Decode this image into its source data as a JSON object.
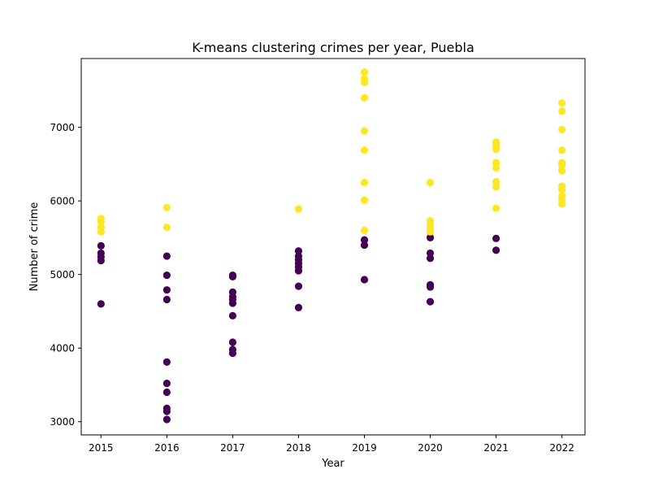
{
  "chart_data": {
    "type": "scatter",
    "title": "K-means clustering crimes per year, Puebla",
    "xlabel": "Year",
    "ylabel": "Number of crime",
    "xlim": [
      2014.7,
      2022.35
    ],
    "ylim": [
      2820,
      7935
    ],
    "x_ticks": [
      2015,
      2016,
      2017,
      2018,
      2019,
      2020,
      2021,
      2022
    ],
    "y_ticks": [
      3000,
      4000,
      5000,
      6000,
      7000
    ],
    "grid": false,
    "legend": "none",
    "colors": {
      "cluster_0": "#440154",
      "cluster_1": "#fde725"
    },
    "series": [
      {
        "cluster": 0,
        "color": "#440154",
        "points": [
          [
            2015,
            5390
          ],
          [
            2015,
            5290
          ],
          [
            2015,
            5240
          ],
          [
            2015,
            5190
          ],
          [
            2015,
            4600
          ],
          [
            2016,
            5250
          ],
          [
            2016,
            4990
          ],
          [
            2016,
            4790
          ],
          [
            2016,
            4660
          ],
          [
            2016,
            3810
          ],
          [
            2016,
            3520
          ],
          [
            2016,
            3400
          ],
          [
            2016,
            3180
          ],
          [
            2016,
            3140
          ],
          [
            2016,
            3030
          ],
          [
            2017,
            4990
          ],
          [
            2017,
            4970
          ],
          [
            2017,
            4760
          ],
          [
            2017,
            4700
          ],
          [
            2017,
            4660
          ],
          [
            2017,
            4610
          ],
          [
            2017,
            4440
          ],
          [
            2017,
            4080
          ],
          [
            2017,
            3980
          ],
          [
            2017,
            3930
          ],
          [
            2018,
            5320
          ],
          [
            2018,
            5250
          ],
          [
            2018,
            5200
          ],
          [
            2018,
            5150
          ],
          [
            2018,
            5100
          ],
          [
            2018,
            5050
          ],
          [
            2018,
            4840
          ],
          [
            2018,
            4550
          ],
          [
            2019,
            5470
          ],
          [
            2019,
            5400
          ],
          [
            2019,
            4930
          ],
          [
            2020,
            5500
          ],
          [
            2020,
            5290
          ],
          [
            2020,
            5220
          ],
          [
            2020,
            4860
          ],
          [
            2020,
            4830
          ],
          [
            2020,
            4630
          ],
          [
            2021,
            5490
          ],
          [
            2021,
            5330
          ]
        ]
      },
      {
        "cluster": 1,
        "color": "#fde725",
        "points": [
          [
            2015,
            5760
          ],
          [
            2015,
            5710
          ],
          [
            2015,
            5640
          ],
          [
            2015,
            5580
          ],
          [
            2016,
            5910
          ],
          [
            2016,
            5640
          ],
          [
            2018,
            5890
          ],
          [
            2019,
            7750
          ],
          [
            2019,
            7660
          ],
          [
            2019,
            7610
          ],
          [
            2019,
            7400
          ],
          [
            2019,
            6950
          ],
          [
            2019,
            6690
          ],
          [
            2019,
            6250
          ],
          [
            2019,
            6010
          ],
          [
            2019,
            5600
          ],
          [
            2020,
            6250
          ],
          [
            2020,
            5730
          ],
          [
            2020,
            5670
          ],
          [
            2020,
            5620
          ],
          [
            2020,
            5580
          ],
          [
            2021,
            6800
          ],
          [
            2021,
            6750
          ],
          [
            2021,
            6700
          ],
          [
            2021,
            6520
          ],
          [
            2021,
            6450
          ],
          [
            2021,
            6260
          ],
          [
            2021,
            6190
          ],
          [
            2021,
            5900
          ],
          [
            2022,
            7330
          ],
          [
            2022,
            7220
          ],
          [
            2022,
            6970
          ],
          [
            2022,
            6690
          ],
          [
            2022,
            6520
          ],
          [
            2022,
            6480
          ],
          [
            2022,
            6410
          ],
          [
            2022,
            6200
          ],
          [
            2022,
            6150
          ],
          [
            2022,
            6070
          ],
          [
            2022,
            6010
          ],
          [
            2022,
            5960
          ]
        ]
      }
    ]
  }
}
